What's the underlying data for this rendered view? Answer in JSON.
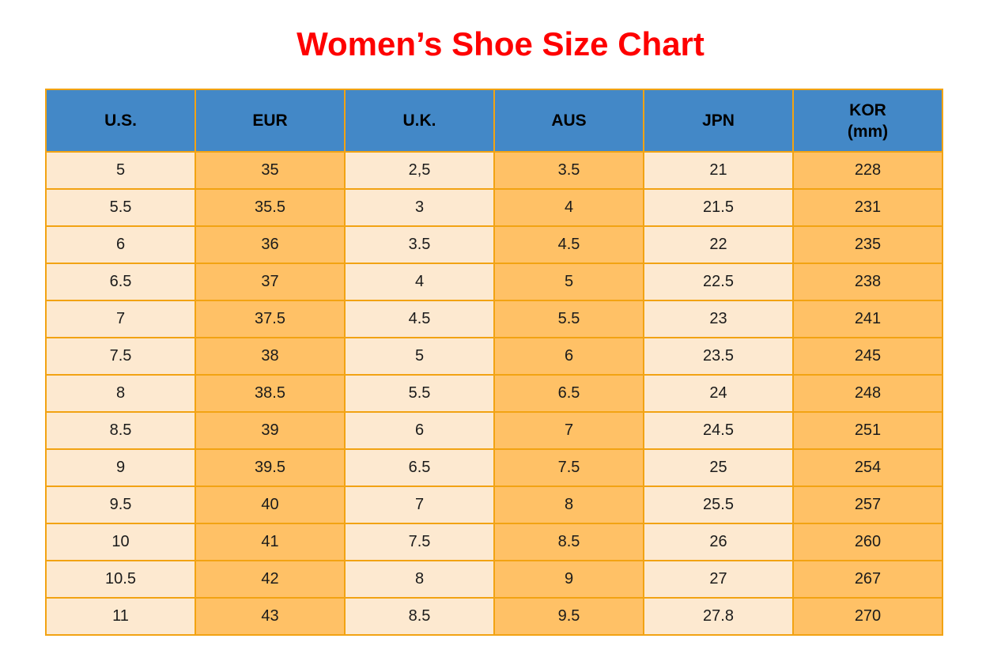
{
  "title": "Women’s Shoe Size Chart",
  "colors": {
    "title_text": "#fe0000",
    "header_bg": "#4388c7",
    "header_text": "#000000",
    "column_light_bg": "#fde9d0",
    "column_orange_bg": "#ffc166",
    "grid_border": "#f2a313",
    "cell_text": "#1b1b1b"
  },
  "chart_data": {
    "type": "table",
    "title": "Women’s Shoe Size Chart",
    "columns": [
      "U.S.",
      "EUR",
      "U.K.",
      "AUS",
      "JPN",
      "KOR (mm)"
    ],
    "kor_header": {
      "line1": "KOR",
      "line2": "(mm)"
    },
    "rows": [
      [
        "5",
        "35",
        "2,5",
        "3.5",
        "21",
        "228"
      ],
      [
        "5.5",
        "35.5",
        "3",
        "4",
        "21.5",
        "231"
      ],
      [
        "6",
        "36",
        "3.5",
        "4.5",
        "22",
        "235"
      ],
      [
        "6.5",
        "37",
        "4",
        "5",
        "22.5",
        "238"
      ],
      [
        "7",
        "37.5",
        "4.5",
        "5.5",
        "23",
        "241"
      ],
      [
        "7.5",
        "38",
        "5",
        "6",
        "23.5",
        "245"
      ],
      [
        "8",
        "38.5",
        "5.5",
        "6.5",
        "24",
        "248"
      ],
      [
        "8.5",
        "39",
        "6",
        "7",
        "24.5",
        "251"
      ],
      [
        "9",
        "39.5",
        "6.5",
        "7.5",
        "25",
        "254"
      ],
      [
        "9.5",
        "40",
        "7",
        "8",
        "25.5",
        "257"
      ],
      [
        "10",
        "41",
        "7.5",
        "8.5",
        "26",
        "260"
      ],
      [
        "10.5",
        "42",
        "8",
        "9",
        "27",
        "267"
      ],
      [
        "11",
        "43",
        "8.5",
        "9.5",
        "27.8",
        "270"
      ]
    ]
  }
}
